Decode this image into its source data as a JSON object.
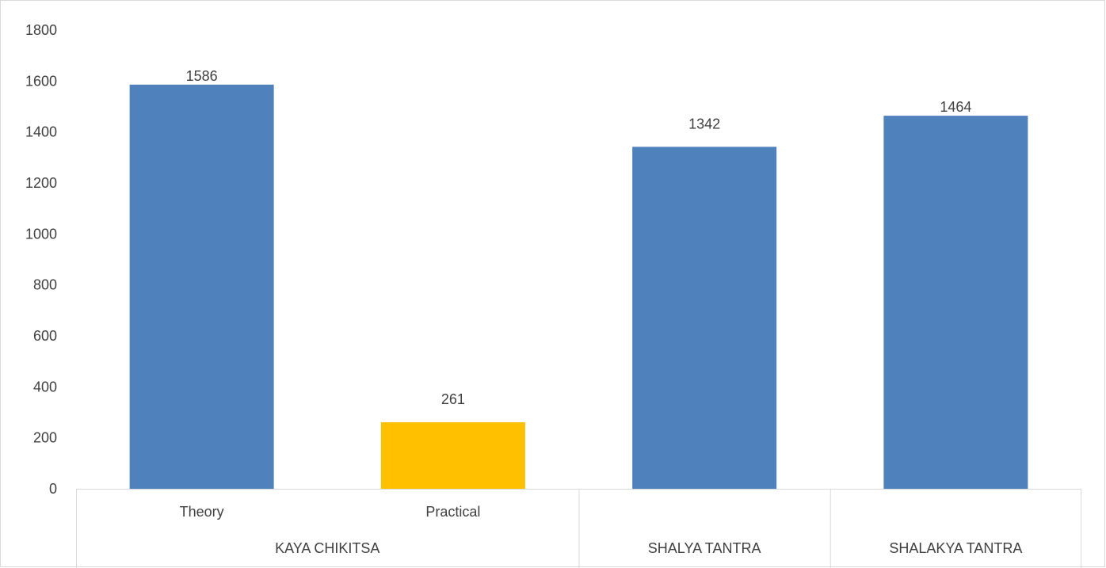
{
  "chart_data": {
    "type": "bar",
    "categories": [
      {
        "group": "KAYA CHIKITSA",
        "sub": "Theory"
      },
      {
        "group": "KAYA CHIKITSA",
        "sub": "Practical"
      },
      {
        "group": "SHALYA TANTRA",
        "sub": ""
      },
      {
        "group": "SHALAKYA TANTRA",
        "sub": ""
      }
    ],
    "groups": [
      "KAYA CHIKITSA",
      "SHALYA TANTRA",
      "SHALAKYA TANTRA"
    ],
    "values": [
      1586,
      261,
      1342,
      1464
    ],
    "colors": [
      "#4f81bd",
      "#ffc000",
      "#4f81bd",
      "#4f81bd"
    ],
    "ylim": [
      0,
      1800
    ],
    "yticks": [
      0,
      200,
      400,
      600,
      800,
      1000,
      1200,
      1400,
      1600,
      1800
    ],
    "grid": false,
    "legend": "none",
    "title": "",
    "xlabel": "",
    "ylabel": ""
  }
}
